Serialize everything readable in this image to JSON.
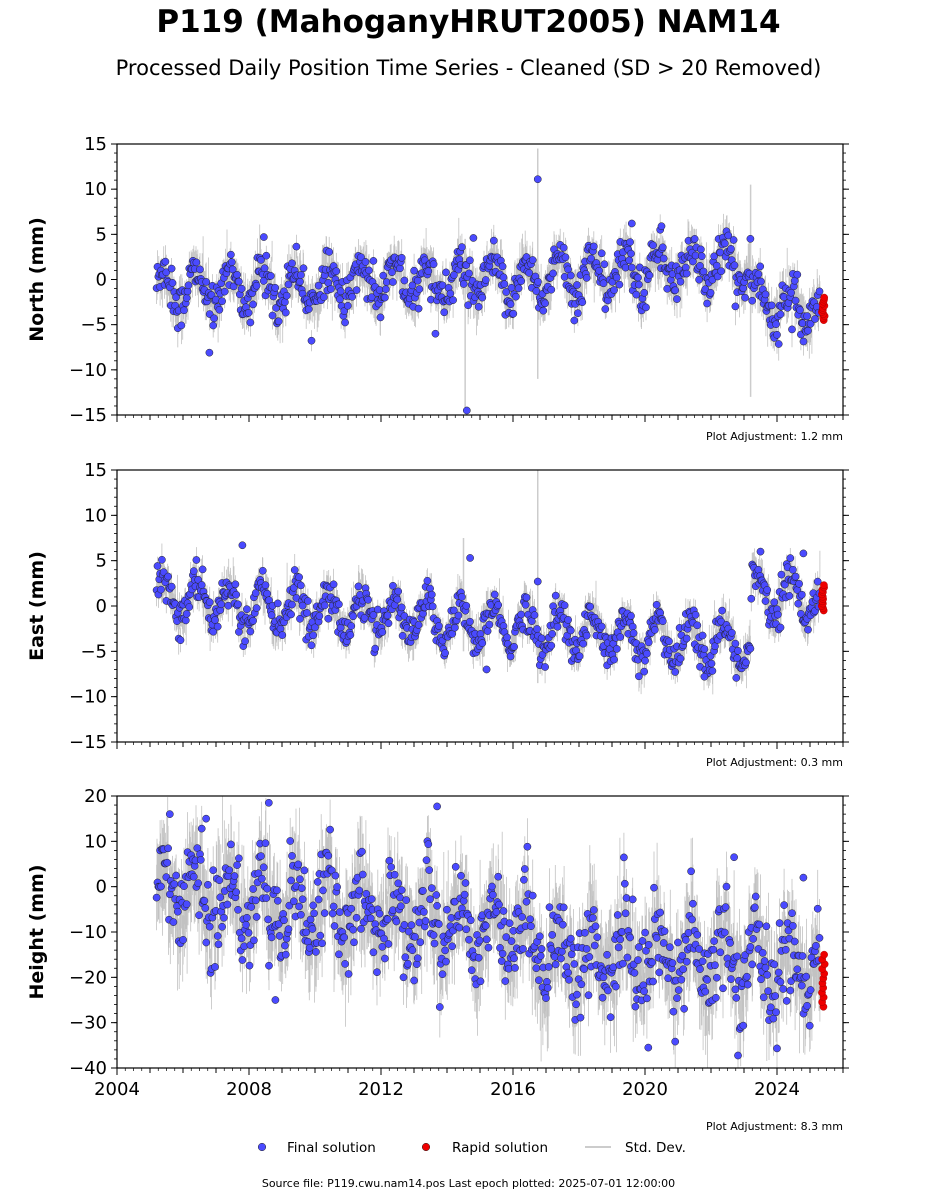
{
  "title": "P119 (MahoganyHRUT2005) NAM14",
  "subtitle": "Processed Daily Position Time Series - Cleaned (SD > 20 Removed)",
  "source_note": "Source file: P119.cwu.nam14.pos  Last epoch plotted: 2025-07-01 12:00:00",
  "legend": [
    {
      "label": "Final solution",
      "color": "#4a4aff",
      "marker": "circle"
    },
    {
      "label": "Rapid solution",
      "color": "#ee0000",
      "marker": "circle"
    },
    {
      "label": "Std. Dev.",
      "color": "#cccccc",
      "marker": "line"
    }
  ],
  "colors": {
    "final": "#4a4aff",
    "rapid": "#ee0000",
    "stddev": "#cccccc",
    "outline": "#222222"
  },
  "chart_data": [
    {
      "type": "scatter",
      "ylabel": "North (mm)",
      "ylim": [
        -15,
        15
      ],
      "yticks": [
        -15,
        -10,
        -5,
        0,
        5,
        10,
        15
      ],
      "ytick_labels": [
        "−15",
        "−10",
        "−5",
        "0",
        "5",
        "10",
        "15"
      ],
      "xlim": [
        2004,
        2026
      ],
      "plot_adjustment": "Plot Adjustment: 1.2 mm",
      "series_trend": {
        "start": 2005.2,
        "end": 2025.3,
        "segments": [
          {
            "x0": 2005.2,
            "x1": 2016.5,
            "y0": -1.2,
            "y1": 0.0
          },
          {
            "x0": 2016.5,
            "x1": 2023.2,
            "y0": 0.0,
            "y1": 1.8
          },
          {
            "x0": 2023.2,
            "x1": 2025.3,
            "y0": -2.0,
            "y1": -3.5
          }
        ],
        "seasonal_amplitude": 2.0,
        "noise": 1.2
      },
      "outliers": [
        {
          "x": 2016.75,
          "y": 11.1
        },
        {
          "x": 2014.6,
          "y": -14.5
        },
        {
          "x": 2006.8,
          "y": -8.1
        },
        {
          "x": 2008.45,
          "y": 4.7
        },
        {
          "x": 2019.6,
          "y": 6.2
        },
        {
          "x": 2020.5,
          "y": 5.9
        },
        {
          "x": 2013.65,
          "y": -6.0
        },
        {
          "x": 2014.8,
          "y": 4.6
        }
      ],
      "stddev_spikes": [
        {
          "x": 2014.55,
          "y0": -14.5,
          "y1": 4.5
        },
        {
          "x": 2016.75,
          "y0": -11.0,
          "y1": 14.5
        },
        {
          "x": 2023.2,
          "y0": -13.0,
          "y1": 10.5
        }
      ],
      "rapid": {
        "x": 2025.4,
        "ymin": -4.5,
        "ymax": -2.0
      }
    },
    {
      "type": "scatter",
      "ylabel": "East (mm)",
      "ylim": [
        -15,
        15
      ],
      "yticks": [
        -15,
        -10,
        -5,
        0,
        5,
        10,
        15
      ],
      "ytick_labels": [
        "−15",
        "−10",
        "−5",
        "0",
        "5",
        "10",
        "15"
      ],
      "xlim": [
        2004,
        2026
      ],
      "plot_adjustment": "Plot Adjustment: 0.3 mm",
      "series_trend": {
        "start": 2005.2,
        "end": 2025.3,
        "segments": [
          {
            "x0": 2005.2,
            "x1": 2023.2,
            "y0": 1.0,
            "y1": -4.5
          },
          {
            "x0": 2023.2,
            "x1": 2025.3,
            "y0": 1.5,
            "y1": 0.8
          }
        ],
        "seasonal_amplitude": 2.2,
        "noise": 1.0
      },
      "outliers": [
        {
          "x": 2007.8,
          "y": 6.7
        },
        {
          "x": 2014.7,
          "y": 5.3
        },
        {
          "x": 2016.75,
          "y": 2.7
        },
        {
          "x": 2021.8,
          "y": -7.8
        },
        {
          "x": 2015.2,
          "y": -7.0
        },
        {
          "x": 2023.5,
          "y": 6.0
        },
        {
          "x": 2024.8,
          "y": 5.8
        }
      ],
      "stddev_spikes": [
        {
          "x": 2016.75,
          "y0": -8.5,
          "y1": 15.0
        },
        {
          "x": 2014.5,
          "y0": -5.0,
          "y1": 7.5
        }
      ],
      "rapid": {
        "x": 2025.4,
        "ymin": -0.5,
        "ymax": 2.3
      }
    },
    {
      "type": "scatter",
      "ylabel": "Height (mm)",
      "ylim": [
        -40,
        20
      ],
      "yticks": [
        -40,
        -30,
        -20,
        -10,
        0,
        10,
        20
      ],
      "ytick_labels": [
        "−40",
        "−30",
        "−20",
        "−10",
        "0",
        "10",
        "20"
      ],
      "xlim": [
        2004,
        2026
      ],
      "xticks": [
        2004,
        2008,
        2012,
        2016,
        2020,
        2024
      ],
      "xtick_labels": [
        "2004",
        "2008",
        "2012",
        "2016",
        "2020",
        "2024"
      ],
      "plot_adjustment": "Plot Adjustment: 8.3 mm",
      "series_trend": {
        "start": 2005.2,
        "end": 2025.3,
        "segments": [
          {
            "x0": 2005.2,
            "x1": 2016.5,
            "y0": -1.0,
            "y1": -10.0
          },
          {
            "x0": 2016.5,
            "x1": 2025.3,
            "y0": -14.0,
            "y1": -18.0
          }
        ],
        "seasonal_amplitude": 6.0,
        "noise": 5.0
      },
      "outliers": [
        {
          "x": 2008.6,
          "y": 18.5
        },
        {
          "x": 2013.7,
          "y": 17.7
        },
        {
          "x": 2020.1,
          "y": -35.5
        },
        {
          "x": 2022.7,
          "y": 6.5
        },
        {
          "x": 2024.8,
          "y": 2.0
        },
        {
          "x": 2008.8,
          "y": -25.0
        },
        {
          "x": 2005.6,
          "y": 16.0
        },
        {
          "x": 2006.7,
          "y": 15.0
        }
      ],
      "stddev_spikes": [],
      "rapid": {
        "x": 2025.4,
        "ymin": -26.5,
        "ymax": -15.0
      }
    }
  ]
}
